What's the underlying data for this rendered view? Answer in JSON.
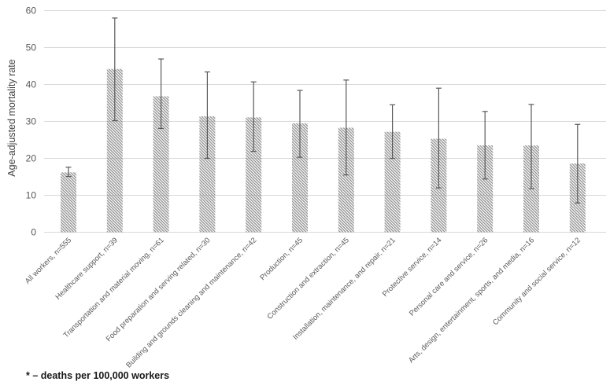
{
  "figure": {
    "footnote": "* – deaths per 100,000 workers"
  },
  "chart_data": {
    "type": "bar",
    "title": "",
    "xlabel": "",
    "ylabel": "Age-adjusted mortality rate",
    "ylim": [
      0,
      60
    ],
    "yticks": [
      0,
      10,
      20,
      30,
      40,
      50,
      60
    ],
    "grid": true,
    "legend_position": "none",
    "bar_fill_style": "diagonal-hatch",
    "colors": {
      "hatch_line": "#8f8f8f",
      "error_bar": "#595959",
      "gridline": "#d9d9d9",
      "axis_line": "#d9d9d9",
      "tick_text": "#595959",
      "category_text": "#595959",
      "axis_title_text": "#404040",
      "background": "#ffffff"
    },
    "categories": [
      "All workers, n=555",
      "Healthcare support, n=39",
      "Transportation and material moving, n=61",
      "Food preparation and serving related, n=30",
      "Building and grounds cleaning and maintenance, n=42",
      "Production, n=45",
      "Construction and extraction, n=45",
      "Installation, maintenance, and repair, n=21",
      "Protective service, n=14",
      "Personal care and service, n=26",
      "Arts, design, entertainment, sports, and media, n=16",
      "Community and social service, n=12"
    ],
    "values": [
      16.2,
      44.2,
      36.8,
      31.4,
      31.1,
      29.5,
      28.3,
      27.2,
      25.3,
      23.5,
      23.5,
      18.6
    ],
    "error_low": [
      15.1,
      30.2,
      28.1,
      20.0,
      21.9,
      20.3,
      15.5,
      20.0,
      12.0,
      14.4,
      11.8,
      7.9
    ],
    "error_high": [
      17.6,
      58.0,
      46.9,
      43.4,
      40.7,
      38.4,
      41.2,
      34.5,
      39.0,
      32.7,
      34.6,
      29.2
    ]
  }
}
